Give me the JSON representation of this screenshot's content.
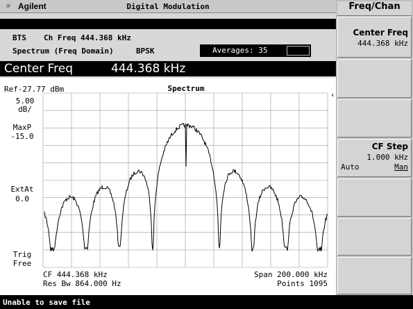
{
  "header": {
    "logo": "Agilent",
    "title": "Digital Modulation"
  },
  "info": {
    "mode": "BTS",
    "channel": "Ch Freq 444.368 kHz",
    "measurement": "Spectrum (Freq Domain)",
    "modulation": "BPSK",
    "averages": "Averages: 35"
  },
  "active_function": {
    "label": "Center Freq",
    "value": "444.368 kHz"
  },
  "plot": {
    "reference": "Ref-27.77 dBm",
    "title": "Spectrum",
    "left_labels": [
      "5.00",
      "dB/",
      "MaxP",
      "-15.0",
      "ExtAt",
      "0.0",
      "Trig",
      "Free"
    ],
    "bottom_left": [
      "CF 444.368 kHz",
      "Res Bw 864.000  Hz"
    ],
    "bottom_right": [
      "Span  200.000 kHz",
      "Points 1095"
    ]
  },
  "menu": {
    "title": "Freq/Chan",
    "softkeys": [
      {
        "label": "Center Freq",
        "value": "444.368 kHz"
      },
      {
        "label": "CF Step",
        "value": "1.000 kHz",
        "options": [
          "Auto",
          "Man"
        ]
      }
    ]
  },
  "status": "Unable to save file"
}
